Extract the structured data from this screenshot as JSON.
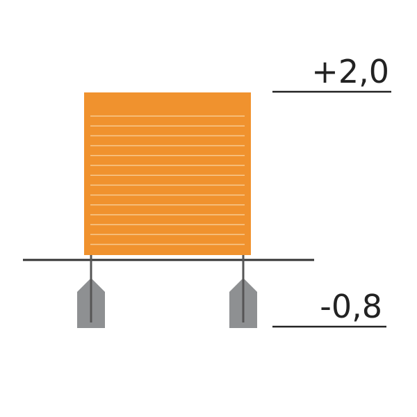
{
  "labels": {
    "top": "+2,0",
    "bottom": "-0,8"
  },
  "colors": {
    "panel": "#F0922E",
    "slat_gap": "#F8C98E",
    "ground": "#333333",
    "footing": "#8E9092",
    "post": "#555555"
  }
}
